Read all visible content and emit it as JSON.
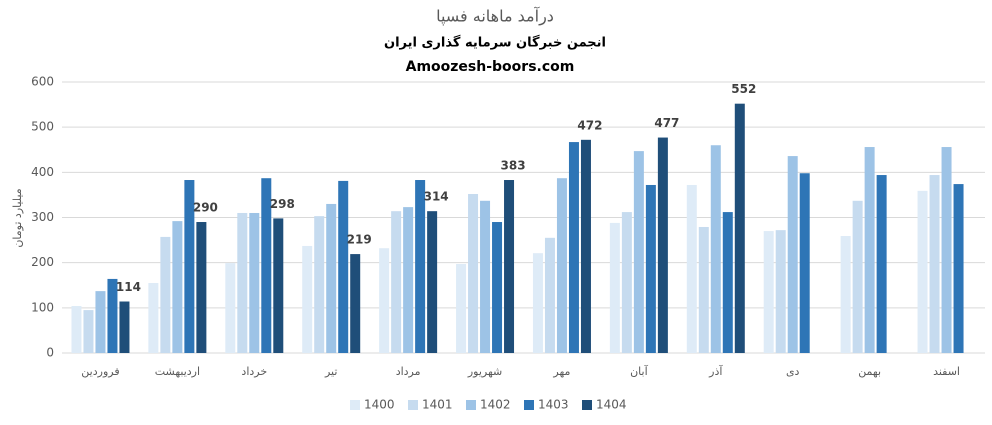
{
  "chart_data": {
    "type": "bar",
    "title": "درآمد ماهانه فسپا",
    "subtitle": "انجمن خبرگان سرمایه گذاری ایران",
    "website": "Amoozesh-boors.com",
    "y_label": "میلیارد تومان",
    "categories": [
      "فروردین",
      "اردیبهشت",
      "خرداد",
      "تیر",
      "مرداد",
      "شهریور",
      "مهر",
      "آبان",
      "آذر",
      "دی",
      "بهمن",
      "اسفند"
    ],
    "series": [
      {
        "name": "1400",
        "color": "#deebf7",
        "values": [
          104,
          155,
          199,
          237,
          232,
          197,
          221,
          288,
          372,
          270,
          259,
          359
        ]
      },
      {
        "name": "1401",
        "color": "#c6dbef",
        "values": [
          95,
          257,
          310,
          303,
          314,
          352,
          255,
          312,
          279,
          272,
          337,
          394
        ]
      },
      {
        "name": "1402",
        "color": "#9dc3e6",
        "values": [
          137,
          292,
          310,
          330,
          323,
          337,
          387,
          447,
          460,
          436,
          456,
          456
        ]
      },
      {
        "name": "1403",
        "color": "#2e75b6",
        "values": [
          164,
          383,
          387,
          381,
          383,
          290,
          467,
          372,
          312,
          398,
          394,
          374
        ]
      },
      {
        "name": "1404",
        "color": "#1f4e79",
        "values": [
          114,
          290,
          298,
          219,
          314,
          383,
          472,
          477,
          552,
          null,
          null,
          null
        ],
        "data_labels": true
      }
    ],
    "ylim": [
      0,
      600
    ],
    "yticks": [
      0,
      100,
      200,
      300,
      400,
      500,
      600
    ],
    "grid": true,
    "legend": "bottom"
  }
}
